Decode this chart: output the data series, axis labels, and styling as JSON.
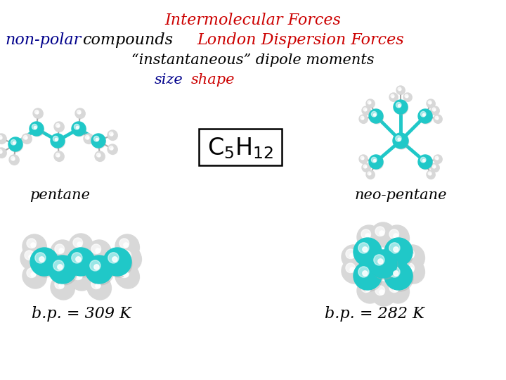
{
  "title": "Intermolecular Forces",
  "line2_nonpolar": "non-polar",
  "line2_compounds": "compounds",
  "line2_london": "London Dispersion Forces",
  "line3": "“instantaneous” dipole moments",
  "line4_size": "size",
  "line4_shape": "shape",
  "formula_text": "C$_5$H$_{12}$",
  "label_pentane": "pentane",
  "label_neopentane": "neo-pentane",
  "bp_pentane": "b.p. = 309 K",
  "bp_neopentane": "b.p. = 282 K",
  "bg_color": "#ffffff",
  "title_color": "#cc0000",
  "nonpolar_color": "#00008b",
  "compounds_color": "#000000",
  "london_color": "#cc0000",
  "instantaneous_color": "#000000",
  "size_color": "#00008b",
  "shape_color": "#cc0000",
  "formula_color": "#000000",
  "label_color": "#000000",
  "bp_color": "#000000",
  "teal": "#20c8c8",
  "title_fontsize": 16,
  "line2_fontsize": 16,
  "line3_fontsize": 15,
  "line4_fontsize": 15,
  "formula_fontsize": 18,
  "label_fontsize": 15,
  "bp_fontsize": 16
}
